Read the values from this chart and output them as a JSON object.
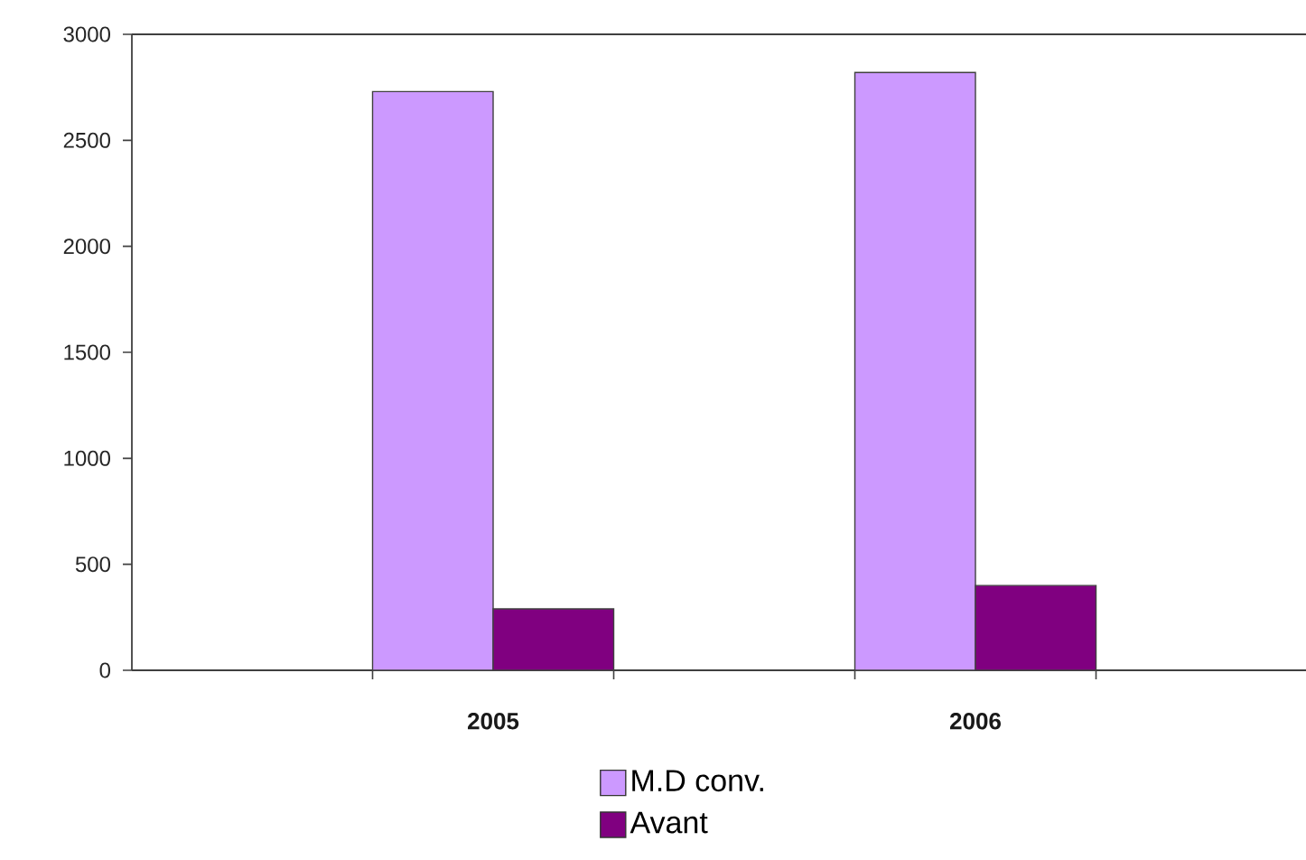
{
  "chart_data": {
    "type": "bar",
    "categories": [
      "2005",
      "2006"
    ],
    "series": [
      {
        "name": "M.D conv.",
        "color": "#cc99ff",
        "values": [
          2730,
          2820
        ]
      },
      {
        "name": "Avant",
        "color": "#800080",
        "values": [
          290,
          400
        ]
      }
    ],
    "ylim": [
      0,
      3000
    ],
    "yticks": [
      0,
      500,
      1000,
      1500,
      2000,
      2500,
      3000
    ],
    "legend": "bottom"
  }
}
